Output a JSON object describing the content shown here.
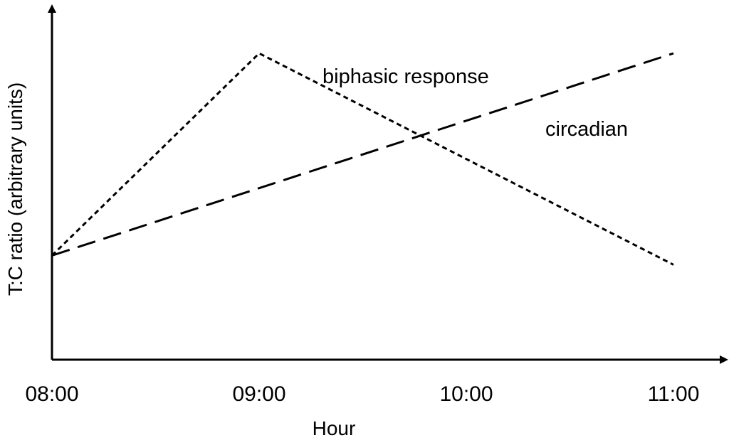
{
  "chart_data": {
    "type": "line",
    "title": "",
    "xlabel": "Hour",
    "ylabel": "T:C ratio (arbitrary units)",
    "x_ticks": [
      "08:00",
      "09:00",
      "10:00",
      "11:00"
    ],
    "xlim": [
      0,
      3
    ],
    "ylim": [
      0,
      1
    ],
    "grid": false,
    "legend": "none",
    "series": [
      {
        "name": "biphasic response",
        "x": [
          0,
          1,
          3
        ],
        "y": [
          0.34,
          1.0,
          0.31
        ],
        "line_style": "short-dash",
        "color": "#000000"
      },
      {
        "name": "circadian",
        "x": [
          0,
          3
        ],
        "y": [
          0.34,
          1.0
        ],
        "line_style": "long-dash",
        "color": "#000000"
      }
    ]
  }
}
